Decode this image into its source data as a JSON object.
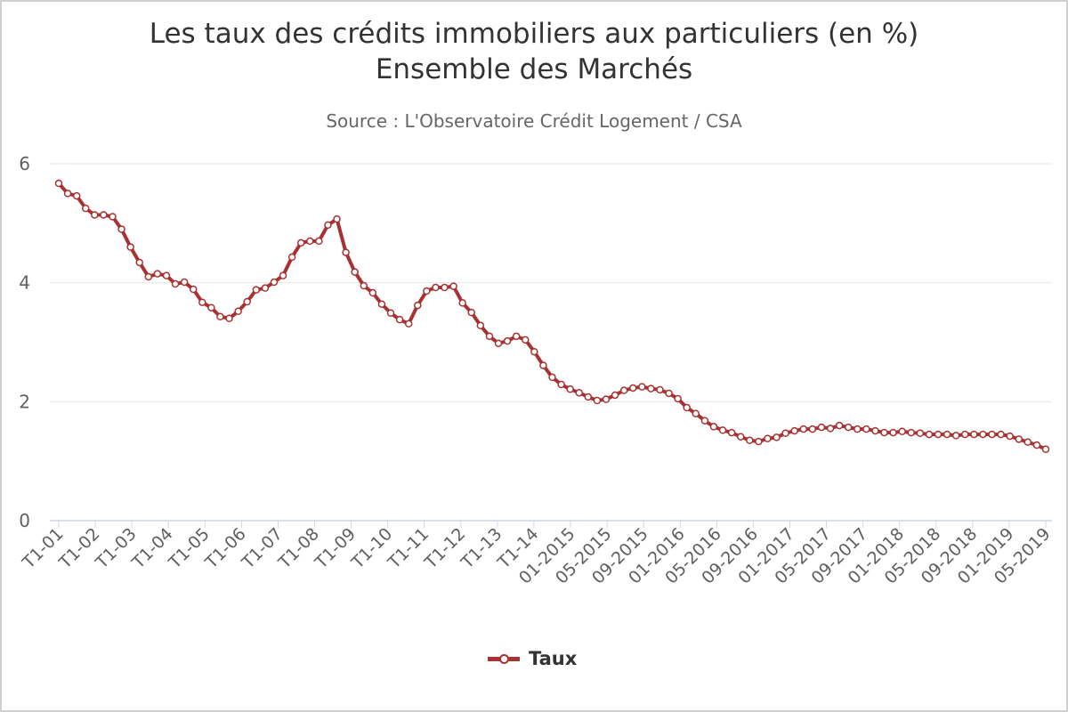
{
  "chart_data": {
    "type": "line",
    "title": "Les taux des crédits immobiliers aux particuliers (en %)",
    "subtitle": "Ensemble des Marchés",
    "source": "Source : L'Observatoire Crédit Logement / CSA",
    "y_ticks": [
      "0",
      "2",
      "4",
      "6"
    ],
    "ylim": [
      0,
      6
    ],
    "grid": "horizontal",
    "legend_placement": "bottom-center",
    "x_ticks": [
      "T1-01",
      "T1-02",
      "T1-03",
      "T1-04",
      "T1-05",
      "T1-06",
      "T1-07",
      "T1-08",
      "T1-09",
      "T1-10",
      "T1-11",
      "T1-12",
      "T1-13",
      "T1-14",
      "01-2015",
      "05-2015",
      "09-2015",
      "01-2016",
      "05-2016",
      "09-2016",
      "01-2017",
      "05-2017",
      "09-2017",
      "01-2018",
      "05-2018",
      "09-2018",
      "01-2019",
      "05-2019"
    ],
    "series": [
      {
        "name": "Taux",
        "color": "#a83232",
        "values": [
          5.67,
          5.5,
          5.46,
          5.25,
          5.14,
          5.14,
          5.11,
          4.9,
          4.6,
          4.34,
          4.1,
          4.15,
          4.12,
          3.98,
          4.01,
          3.89,
          3.67,
          3.58,
          3.43,
          3.4,
          3.52,
          3.68,
          3.88,
          3.91,
          4.01,
          4.12,
          4.43,
          4.67,
          4.7,
          4.7,
          4.97,
          5.07,
          4.51,
          4.18,
          3.95,
          3.83,
          3.64,
          3.49,
          3.38,
          3.31,
          3.62,
          3.86,
          3.92,
          3.92,
          3.94,
          3.66,
          3.5,
          3.28,
          3.1,
          2.98,
          3.02,
          3.1,
          3.04,
          2.84,
          2.61,
          2.41,
          2.29,
          2.21,
          2.15,
          2.08,
          2.02,
          2.04,
          2.11,
          2.19,
          2.23,
          2.25,
          2.22,
          2.2,
          2.14,
          2.05,
          1.9,
          1.8,
          1.68,
          1.58,
          1.52,
          1.48,
          1.41,
          1.35,
          1.33,
          1.38,
          1.4,
          1.47,
          1.51,
          1.54,
          1.54,
          1.57,
          1.55,
          1.6,
          1.57,
          1.54,
          1.54,
          1.51,
          1.48,
          1.48,
          1.5,
          1.48,
          1.47,
          1.45,
          1.45,
          1.45,
          1.43,
          1.45,
          1.45,
          1.45,
          1.45,
          1.45,
          1.42,
          1.37,
          1.32,
          1.27,
          1.2
        ]
      }
    ]
  }
}
